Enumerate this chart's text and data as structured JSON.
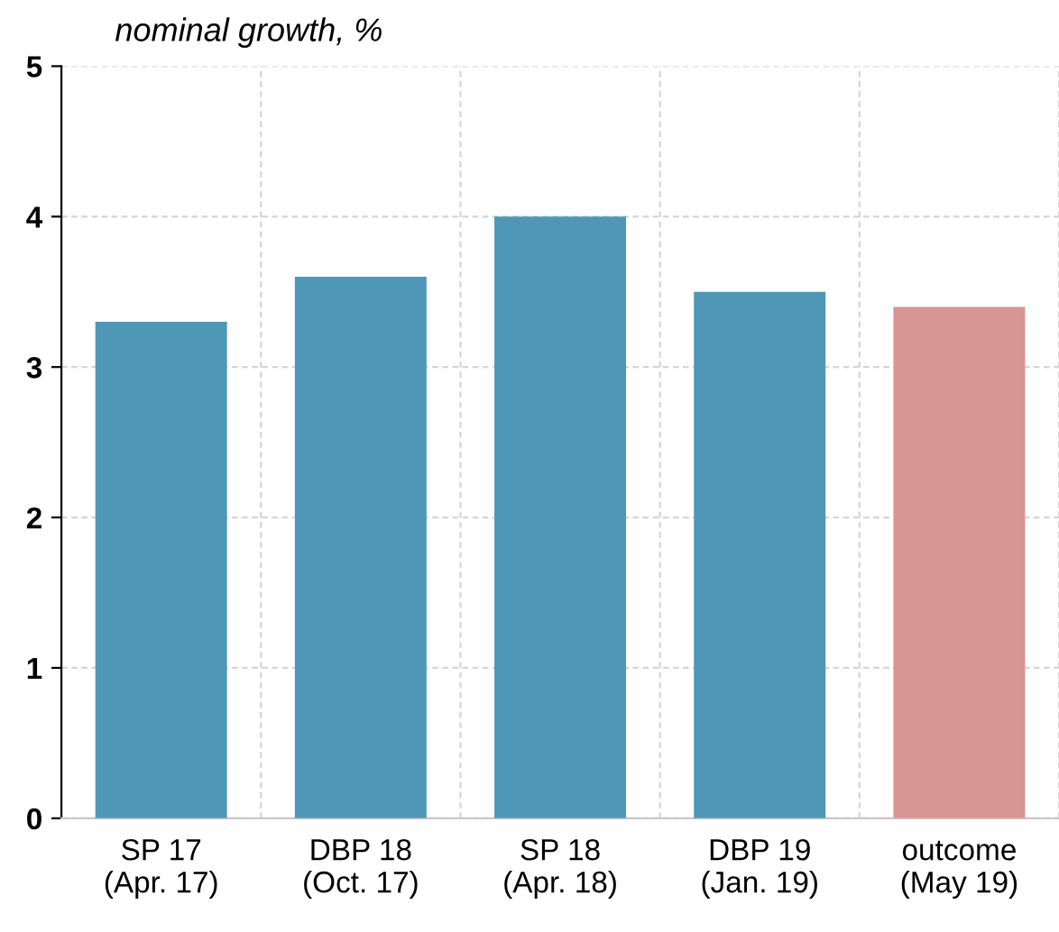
{
  "chart_data": {
    "type": "bar",
    "ylabel": "nominal growth, %",
    "categories": [
      "SP 17\n(Apr. 17)",
      "DBP 18\n(Oct. 17)",
      "SP 18\n(Apr. 18)",
      "DBP 19\n(Jan. 19)",
      "outcome\n(May 19)"
    ],
    "values": [
      3.3,
      3.6,
      4.0,
      3.5,
      3.4
    ],
    "colors": [
      "#4f97b7",
      "#4f97b7",
      "#4f97b7",
      "#4f97b7",
      "#d99593"
    ],
    "ylim": [
      0,
      5
    ],
    "yticks": [
      0,
      1,
      2,
      3,
      4,
      5
    ],
    "grid": true
  }
}
